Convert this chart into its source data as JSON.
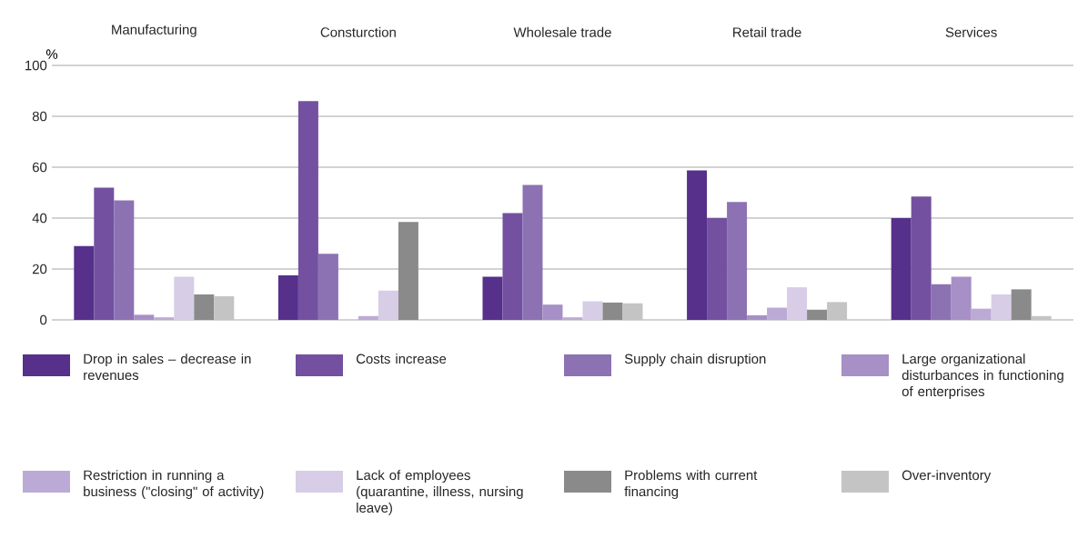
{
  "chart_data": {
    "type": "bar",
    "ylabel": "%",
    "categories": [
      "Manufacturing",
      "Consturction",
      "Wholesale trade",
      "Retail trade",
      "Services"
    ],
    "series": [
      {
        "name": "Drop in sales – decrease in revenues",
        "color": "#56308a",
        "values": [
          29,
          17.5,
          17,
          58.7,
          40
        ]
      },
      {
        "name": "Costs increase",
        "color": "#7350a0",
        "values": [
          52,
          86,
          42,
          40,
          48.5
        ]
      },
      {
        "name": "Supply chain disruption",
        "color": "#8c72b3",
        "values": [
          47,
          26,
          53,
          46.3,
          14
        ]
      },
      {
        "name": "Large organizational disturbances in functioning of enterprises",
        "color": "#a690c6",
        "values": [
          2,
          0,
          6,
          1.8,
          17
        ]
      },
      {
        "name": "Restriction in running a business (\"closing\" of activity)",
        "color": "#bcaad6",
        "values": [
          1,
          1.5,
          1,
          4.8,
          4.4
        ]
      },
      {
        "name": "Lack of employees (quarantine, illness, nursing leave)",
        "color": "#d7cde6",
        "values": [
          17,
          11.5,
          7.3,
          12.8,
          10
        ]
      },
      {
        "name": "Problems with current financing",
        "color": "#8a8a8a",
        "values": [
          10,
          38.5,
          6.8,
          4,
          12
        ]
      },
      {
        "name": "Over-inventory",
        "color": "#c4c4c4",
        "values": [
          9.3,
          0,
          6.5,
          7,
          1.5
        ]
      }
    ],
    "ylim": [
      0,
      100
    ],
    "yticks": [
      0,
      20,
      40,
      60,
      80,
      100
    ],
    "grid": "y",
    "legend": "bottom"
  }
}
